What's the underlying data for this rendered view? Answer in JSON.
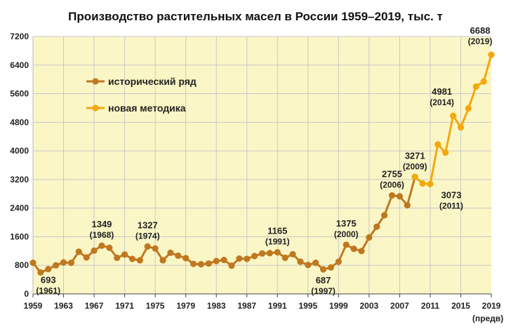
{
  "chart_data": {
    "type": "line",
    "title": "Производство растительных масел в России 1959–2019, тыс. т",
    "xlabel": "",
    "ylabel": "",
    "ylim": [
      0,
      7200
    ],
    "xlim": [
      1959,
      2019
    ],
    "yticks": [
      "0",
      "800",
      "1600",
      "2400",
      "3200",
      "4000",
      "4800",
      "5600",
      "6400",
      "7200"
    ],
    "xticks": [
      "1959",
      "1963",
      "1967",
      "1971",
      "1975",
      "1979",
      "1983",
      "1987",
      "1991",
      "1995",
      "1999",
      "2003",
      "2007",
      "2011",
      "2015",
      "2019"
    ],
    "x_note": "(предв)",
    "grid": true,
    "legend_position": "top-left",
    "colors": {
      "plot_bg": "#fbf6c6",
      "grid": "#c8c8c8",
      "historical": "#c07820",
      "new_method": "#f2a90d"
    },
    "series": [
      {
        "name": "исторический ряд",
        "color": "#c07820",
        "points": [
          [
            1959,
            870
          ],
          [
            1960,
            600
          ],
          [
            1961,
            693
          ],
          [
            1962,
            800
          ],
          [
            1963,
            880
          ],
          [
            1964,
            870
          ],
          [
            1965,
            1180
          ],
          [
            1966,
            1020
          ],
          [
            1967,
            1210
          ],
          [
            1968,
            1349
          ],
          [
            1969,
            1290
          ],
          [
            1970,
            1010
          ],
          [
            1971,
            1100
          ],
          [
            1972,
            980
          ],
          [
            1973,
            940
          ],
          [
            1974,
            1327
          ],
          [
            1975,
            1270
          ],
          [
            1976,
            940
          ],
          [
            1977,
            1150
          ],
          [
            1978,
            1070
          ],
          [
            1979,
            1000
          ],
          [
            1980,
            840
          ],
          [
            1981,
            830
          ],
          [
            1982,
            850
          ],
          [
            1983,
            920
          ],
          [
            1984,
            950
          ],
          [
            1985,
            790
          ],
          [
            1986,
            990
          ],
          [
            1987,
            980
          ],
          [
            1988,
            1060
          ],
          [
            1989,
            1130
          ],
          [
            1990,
            1140
          ],
          [
            1991,
            1165
          ],
          [
            1992,
            1010
          ],
          [
            1993,
            1110
          ],
          [
            1994,
            900
          ],
          [
            1995,
            810
          ],
          [
            1996,
            870
          ],
          [
            1997,
            687
          ],
          [
            1998,
            740
          ],
          [
            1999,
            900
          ],
          [
            2000,
            1375
          ],
          [
            2001,
            1260
          ],
          [
            2002,
            1200
          ],
          [
            2003,
            1580
          ],
          [
            2004,
            1880
          ],
          [
            2005,
            2200
          ],
          [
            2006,
            2755
          ],
          [
            2007,
            2730
          ],
          [
            2008,
            2480
          ],
          [
            2009,
            3271
          ]
        ]
      },
      {
        "name": "новая методика",
        "color": "#f2a90d",
        "points": [
          [
            2009,
            3271
          ],
          [
            2010,
            3090
          ],
          [
            2011,
            3073
          ],
          [
            2012,
            4180
          ],
          [
            2013,
            3950
          ],
          [
            2014,
            4981
          ],
          [
            2015,
            4660
          ],
          [
            2016,
            5190
          ],
          [
            2017,
            5800
          ],
          [
            2018,
            5940
          ],
          [
            2019,
            6688
          ]
        ]
      }
    ],
    "annotations": [
      {
        "value": "693",
        "year": "(1961)",
        "x": 1961,
        "y": 693,
        "side": "below"
      },
      {
        "value": "1349",
        "year": "(1968)",
        "x": 1968,
        "y": 1349,
        "side": "above"
      },
      {
        "value": "1327",
        "year": "(1974)",
        "x": 1974,
        "y": 1327,
        "side": "above"
      },
      {
        "value": "1165",
        "year": "(1991)",
        "x": 1991,
        "y": 1165,
        "side": "above"
      },
      {
        "value": "687",
        "year": "(1997)",
        "x": 1997,
        "y": 687,
        "side": "below"
      },
      {
        "value": "1375",
        "year": "(2000)",
        "x": 2000,
        "y": 1375,
        "side": "above"
      },
      {
        "value": "2755",
        "year": "(2006)",
        "x": 2006,
        "y": 2755,
        "side": "above"
      },
      {
        "value": "3271",
        "year": "(2009)",
        "x": 2009,
        "y": 3271,
        "side": "above"
      },
      {
        "value": "3073",
        "year": "(2011)",
        "x": 2011,
        "y": 3073,
        "side": "below-right"
      },
      {
        "value": "4981",
        "year": "(2014)",
        "x": 2014,
        "y": 4981,
        "side": "above-left"
      },
      {
        "value": "6688",
        "year": "(2019)",
        "x": 2019,
        "y": 6688,
        "side": "above-left"
      }
    ]
  }
}
